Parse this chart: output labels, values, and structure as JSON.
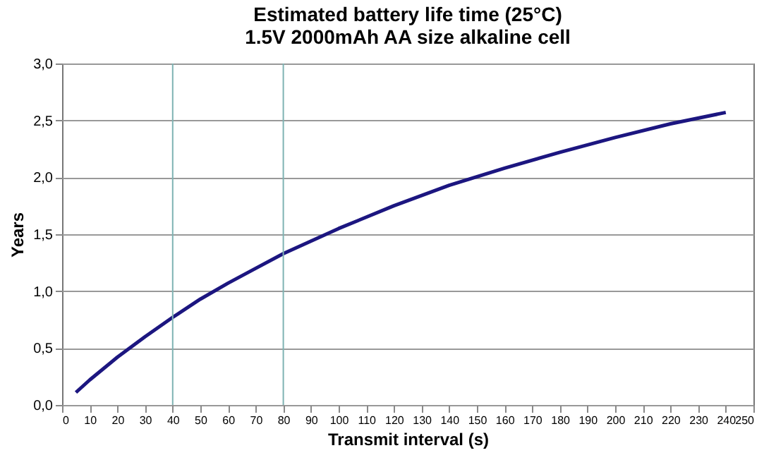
{
  "chart_data": {
    "type": "line",
    "title": "Estimated battery life time (25°C)",
    "subtitle": "1.5V 2000mAh AA size alkaline cell",
    "xlabel": "Transmit interval (s)",
    "ylabel": "Years",
    "x": [
      5,
      10,
      20,
      30,
      40,
      50,
      60,
      70,
      80,
      90,
      100,
      120,
      140,
      160,
      180,
      200,
      220,
      240
    ],
    "series": [
      {
        "color": "#1c1680",
        "values": [
          0.11,
          0.22,
          0.42,
          0.6,
          0.77,
          0.93,
          1.07,
          1.2,
          1.33,
          1.44,
          1.55,
          1.75,
          1.93,
          2.08,
          2.22,
          2.35,
          2.47,
          2.57
        ]
      }
    ],
    "xlim": [
      0,
      250
    ],
    "xticks": [
      0,
      10,
      20,
      30,
      40,
      50,
      60,
      70,
      80,
      90,
      100,
      110,
      120,
      130,
      140,
      150,
      160,
      170,
      180,
      190,
      200,
      210,
      220,
      230,
      240,
      250
    ],
    "ylim": [
      0,
      3
    ],
    "yticks": [
      {
        "value": 0,
        "label": "0,0"
      },
      {
        "value": 0.5,
        "label": "0,5"
      },
      {
        "value": 1,
        "label": "1,0"
      },
      {
        "value": 1.5,
        "label": "1,5"
      },
      {
        "value": 2,
        "label": "2,0"
      },
      {
        "value": 2.5,
        "label": "2,5"
      },
      {
        "value": 3,
        "label": "3,0"
      }
    ],
    "grid": "y",
    "legend": false,
    "marker": "none",
    "line_style": "solid",
    "ref_lines": [
      {
        "axis": "x",
        "value": 40,
        "color": "#7fb3b3"
      },
      {
        "axis": "x",
        "value": 80,
        "color": "#7fb3b3"
      }
    ]
  }
}
